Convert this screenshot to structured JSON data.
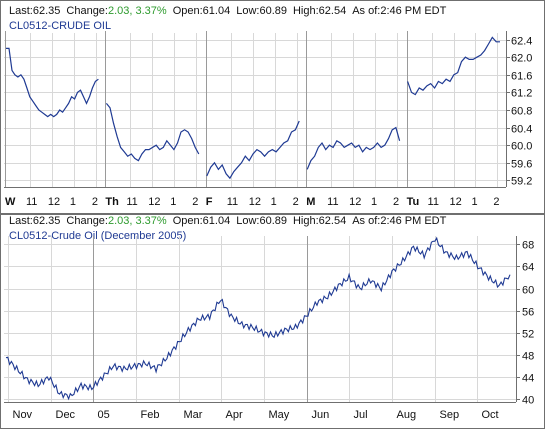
{
  "colors": {
    "line": "#1f3a93",
    "frame": "#6f6f6f",
    "grid": "#d8d8d8",
    "change_text": "#2d9a2d",
    "symbol_text": "#1f3a93",
    "label_text": "#111111"
  },
  "header": {
    "last_label": "Last:",
    "last_value": "62.35",
    "change_label": "Change:",
    "change_value": "2.03, 3.37%",
    "open_label": "Open:",
    "open_value": "61.04",
    "low_label": "Low:",
    "low_value": "60.89",
    "high_label": "High:",
    "high_value": "62.54",
    "asof_label": "As of:",
    "asof_value": "2:46 PM EDT"
  },
  "chart_data": [
    {
      "type": "line",
      "symbol_label": "CL0512-CRUDE OIL",
      "title": "",
      "xlabel": "",
      "ylabel": "",
      "ylim": [
        59.05,
        62.55
      ],
      "y_ticks": [
        59.2,
        59.6,
        60.0,
        60.4,
        60.8,
        61.2,
        61.6,
        62.0,
        62.4
      ],
      "y_tick_labels": [
        "59.2",
        "59.6",
        "60.0",
        "60.4",
        "60.8",
        "61.2",
        "61.6",
        "62.0",
        "62.4"
      ],
      "x_tick_labels": [
        "W",
        "11",
        "12",
        "1",
        "2",
        "Th",
        "11",
        "12",
        "1",
        "2",
        "F",
        "11",
        "12",
        "1",
        "2",
        "M",
        "11",
        "12",
        "1",
        "2",
        "Tu",
        "11",
        "12",
        "1",
        "2"
      ],
      "grid": true,
      "series": [
        {
          "session": "W",
          "values": [
            62.2,
            62.2,
            61.7,
            61.6,
            61.55,
            61.6,
            61.5,
            61.3,
            61.1,
            61.0,
            60.9,
            60.8,
            60.75,
            60.7,
            60.65,
            60.7,
            60.65,
            60.7,
            60.8,
            60.75,
            60.85,
            60.95,
            61.1,
            61.05,
            61.2,
            61.25,
            61.1,
            60.95,
            61.1,
            61.3,
            61.45,
            61.5
          ]
        },
        {
          "session": "Th",
          "values": [
            60.95,
            60.85,
            60.5,
            60.2,
            59.95,
            59.85,
            59.75,
            59.8,
            59.7,
            59.65,
            59.8,
            59.9,
            59.9,
            59.95,
            60.0,
            59.9,
            59.95,
            60.1,
            60.0,
            59.9,
            60.05,
            60.3,
            60.35,
            60.3,
            60.15,
            59.95,
            59.8
          ]
        },
        {
          "session": "F",
          "values": [
            59.3,
            59.5,
            59.6,
            59.45,
            59.55,
            59.35,
            59.25,
            59.4,
            59.5,
            59.6,
            59.75,
            59.65,
            59.8,
            59.9,
            59.85,
            59.75,
            59.85,
            59.9,
            59.85,
            59.95,
            60.05,
            60.1,
            60.3,
            60.35,
            60.55
          ]
        },
        {
          "session": "M",
          "values": [
            59.45,
            59.65,
            59.75,
            59.95,
            60.05,
            59.9,
            60.0,
            59.95,
            60.1,
            60.05,
            59.95,
            60.0,
            60.05,
            59.95,
            60.0,
            59.85,
            59.95,
            59.9,
            59.95,
            60.05,
            59.95,
            60.0,
            60.15,
            60.35,
            60.4,
            60.1
          ]
        },
        {
          "session": "Tu",
          "values": [
            61.45,
            61.2,
            61.15,
            61.3,
            61.25,
            61.35,
            61.4,
            61.3,
            61.45,
            61.4,
            61.5,
            61.45,
            61.6,
            61.65,
            61.9,
            62.0,
            61.95,
            61.95,
            62.0,
            62.05,
            62.15,
            62.3,
            62.45,
            62.35,
            62.35
          ]
        }
      ]
    },
    {
      "type": "line",
      "symbol_label": "CL0512-Crude Oil (December 2005)",
      "title": "",
      "xlabel": "",
      "ylabel": "",
      "ylim": [
        39.5,
        69.5
      ],
      "y_ticks": [
        40,
        44,
        48,
        52,
        56,
        60,
        64,
        68
      ],
      "y_tick_labels": [
        "40",
        "44",
        "48",
        "52",
        "56",
        "60",
        "64",
        "68"
      ],
      "x_tick_labels": [
        "Nov",
        "Dec",
        "05",
        "Feb",
        "Mar",
        "Apr",
        "May",
        "Jun",
        "Jul",
        "Aug",
        "Sep",
        "Oct"
      ],
      "grid": true,
      "x": [
        "Nov",
        "Nov",
        "Nov",
        "Nov",
        "Dec",
        "Dec",
        "Dec",
        "Dec",
        "05",
        "05",
        "05",
        "05",
        "Feb",
        "Feb",
        "Feb",
        "Feb",
        "Mar",
        "Mar",
        "Mar",
        "Mar",
        "Apr",
        "Apr",
        "Apr",
        "Apr",
        "May",
        "May",
        "May",
        "May",
        "Jun",
        "Jun",
        "Jun",
        "Jun",
        "Jul",
        "Jul",
        "Jul",
        "Jul",
        "Aug",
        "Aug",
        "Aug",
        "Aug",
        "Sep",
        "Sep",
        "Sep",
        "Sep",
        "Oct",
        "Oct",
        "Oct",
        "Oct"
      ],
      "values": [
        47.5,
        45.5,
        43.5,
        42.6,
        44.0,
        41.0,
        40.5,
        42.5,
        42.0,
        44.0,
        46.0,
        45.5,
        46.0,
        46.5,
        45.5,
        47.5,
        50.0,
        52.5,
        54.5,
        55.0,
        58.0,
        55.0,
        53.5,
        53.0,
        52.0,
        51.5,
        52.5,
        53.0,
        55.0,
        57.5,
        58.5,
        60.5,
        62.0,
        60.0,
        61.5,
        60.0,
        63.0,
        65.0,
        67.5,
        66.0,
        69.0,
        66.5,
        65.5,
        66.5,
        64.0,
        62.0,
        60.5,
        62.5
      ]
    }
  ]
}
